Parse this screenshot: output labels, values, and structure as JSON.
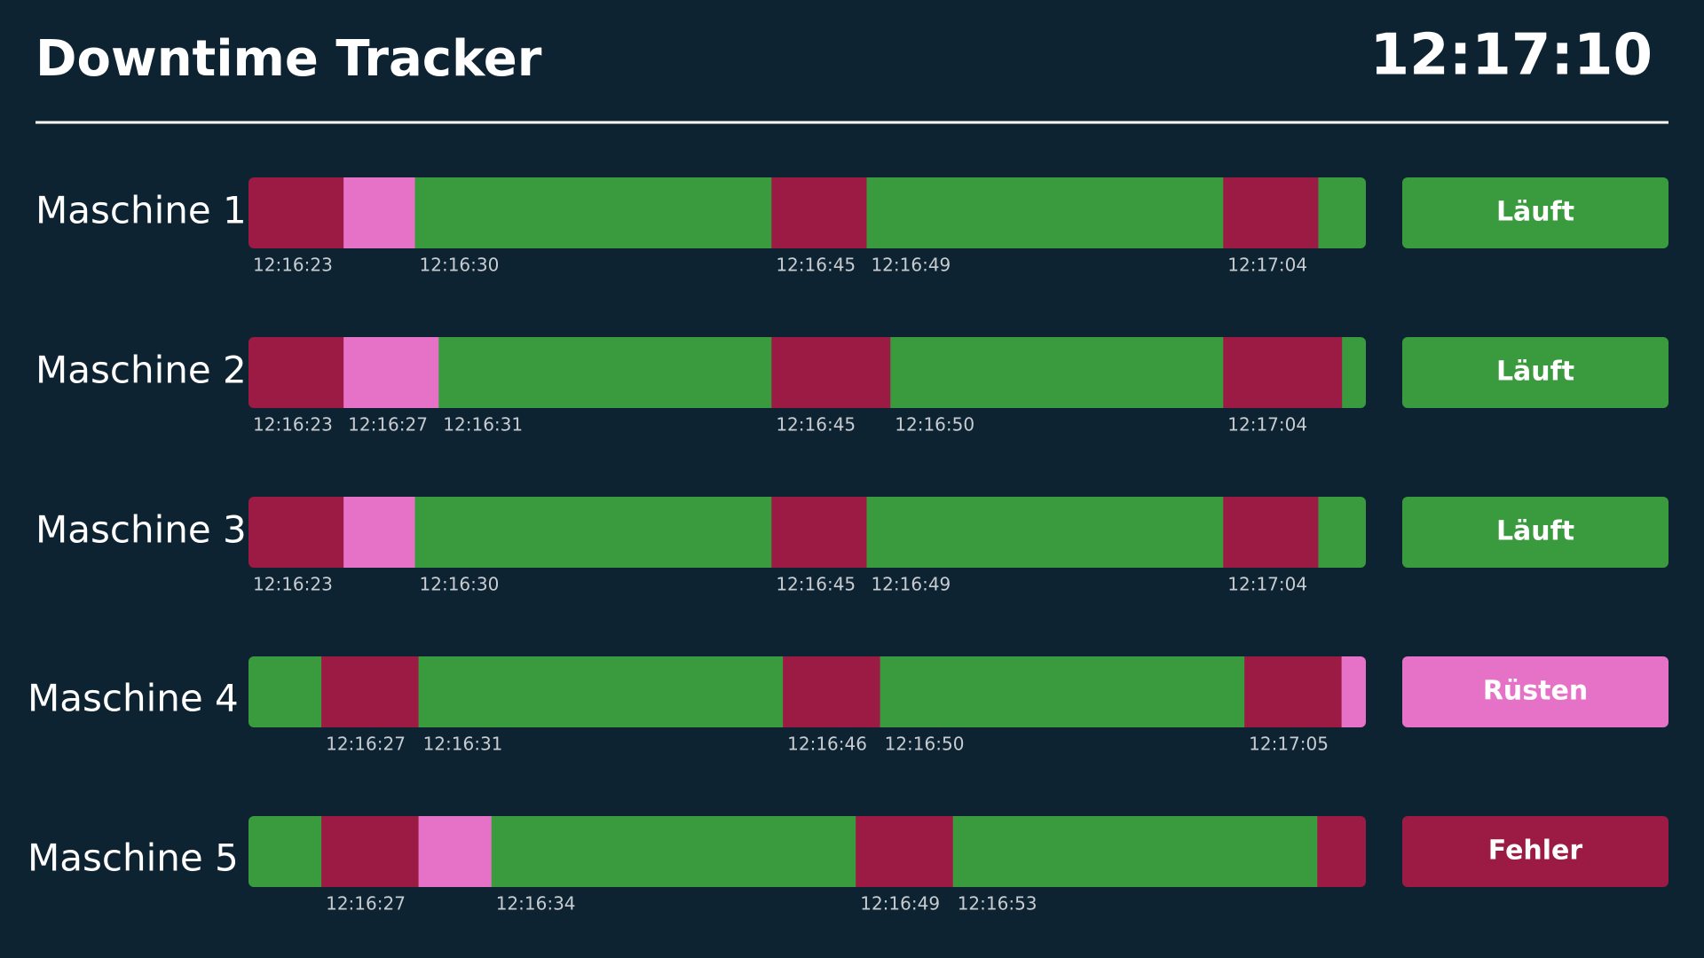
{
  "header": {
    "title": "Downtime Tracker",
    "clock": "12:17:10"
  },
  "machines": [
    {
      "label": "Maschine 1",
      "status": {
        "text": "Läuft",
        "color": "#3a9a3e"
      },
      "segments": [
        {
          "color": "#9b1b44",
          "duration": 4,
          "label": "12:16:23"
        },
        {
          "color": "#e672c8",
          "duration": 3,
          "label": null
        },
        {
          "color": "#3a9a3e",
          "duration": 15,
          "label": "12:16:30"
        },
        {
          "color": "#9b1b44",
          "duration": 4,
          "label": "12:16:45"
        },
        {
          "color": "#3a9a3e",
          "duration": 15,
          "label": "12:16:49"
        },
        {
          "color": "#9b1b44",
          "duration": 4,
          "label": "12:17:04"
        },
        {
          "color": "#3a9a3e",
          "duration": 2,
          "label": null
        }
      ]
    },
    {
      "label": "Maschine 2",
      "status": {
        "text": "Läuft",
        "color": "#3a9a3e"
      },
      "segments": [
        {
          "color": "#9b1b44",
          "duration": 4,
          "label": "12:16:23"
        },
        {
          "color": "#e672c8",
          "duration": 4,
          "label": "12:16:27"
        },
        {
          "color": "#3a9a3e",
          "duration": 14,
          "label": "12:16:31"
        },
        {
          "color": "#9b1b44",
          "duration": 5,
          "label": "12:16:45"
        },
        {
          "color": "#3a9a3e",
          "duration": 14,
          "label": "12:16:50"
        },
        {
          "color": "#9b1b44",
          "duration": 5,
          "label": "12:17:04"
        },
        {
          "color": "#3a9a3e",
          "duration": 1,
          "label": null
        }
      ]
    },
    {
      "label": "Maschine 3",
      "status": {
        "text": "Läuft",
        "color": "#3a9a3e"
      },
      "segments": [
        {
          "color": "#9b1b44",
          "duration": 4,
          "label": "12:16:23"
        },
        {
          "color": "#e672c8",
          "duration": 3,
          "label": null
        },
        {
          "color": "#3a9a3e",
          "duration": 15,
          "label": "12:16:30"
        },
        {
          "color": "#9b1b44",
          "duration": 4,
          "label": "12:16:45"
        },
        {
          "color": "#3a9a3e",
          "duration": 15,
          "label": "12:16:49"
        },
        {
          "color": "#9b1b44",
          "duration": 4,
          "label": "12:17:04"
        },
        {
          "color": "#3a9a3e",
          "duration": 2,
          "label": null
        }
      ]
    },
    {
      "label": "Maschine 4",
      "status": {
        "text": "Rüsten",
        "color": "#e672c8"
      },
      "segments": [
        {
          "color": "#3a9a3e",
          "duration": 3,
          "label": null
        },
        {
          "color": "#9b1b44",
          "duration": 4,
          "label": "12:16:27"
        },
        {
          "color": "#3a9a3e",
          "duration": 15,
          "label": "12:16:31"
        },
        {
          "color": "#9b1b44",
          "duration": 4,
          "label": "12:16:46"
        },
        {
          "color": "#3a9a3e",
          "duration": 15,
          "label": "12:16:50"
        },
        {
          "color": "#9b1b44",
          "duration": 4,
          "label": "12:17:05"
        },
        {
          "color": "#e672c8",
          "duration": 1,
          "label": null
        }
      ]
    },
    {
      "label": "Maschine 5",
      "status": {
        "text": "Fehler",
        "color": "#9b1b44"
      },
      "segments": [
        {
          "color": "#3a9a3e",
          "duration": 3,
          "label": null
        },
        {
          "color": "#9b1b44",
          "duration": 4,
          "label": "12:16:27"
        },
        {
          "color": "#e672c8",
          "duration": 3,
          "label": null
        },
        {
          "color": "#3a9a3e",
          "duration": 15,
          "label": "12:16:34"
        },
        {
          "color": "#9b1b44",
          "duration": 4,
          "label": "12:16:49"
        },
        {
          "color": "#3a9a3e",
          "duration": 15,
          "label": "12:16:53"
        },
        {
          "color": "#9b1b44",
          "duration": 2,
          "label": null
        }
      ]
    }
  ]
}
